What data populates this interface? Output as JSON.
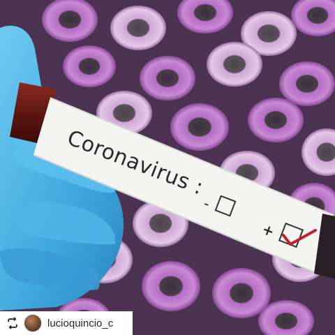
{
  "photo": {
    "label_text": "Coronavirus :",
    "minus_sign": "-",
    "plus_sign": "+"
  },
  "repost": {
    "username": "lucioquincio_c"
  },
  "colors": {
    "glove": "#56b9e8",
    "tube_cap_purple": "#b060c0",
    "label_bg": "#f4f4f4",
    "check_red": "#c21f2b"
  }
}
